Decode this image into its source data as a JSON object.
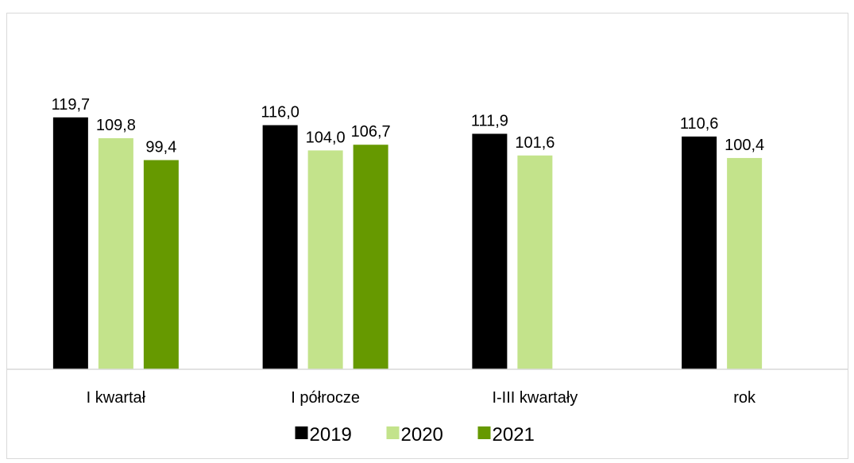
{
  "chart_data": {
    "type": "bar",
    "title": "",
    "xlabel": "",
    "ylabel": "",
    "ylim": [
      0,
      125
    ],
    "grid": false,
    "legend_position": "bottom",
    "decimal_separator": ",",
    "categories": [
      "I kwartał",
      "I półrocze",
      "I-III kwartały",
      "rok"
    ],
    "series": [
      {
        "name": "2019",
        "color": "#000000",
        "values": [
          119.7,
          116.0,
          111.9,
          110.6
        ]
      },
      {
        "name": "2020",
        "color": "#c3e38b",
        "values": [
          109.8,
          104.0,
          101.6,
          100.4
        ]
      },
      {
        "name": "2021",
        "color": "#669900",
        "values": [
          99.4,
          106.7,
          null,
          null
        ]
      }
    ]
  }
}
